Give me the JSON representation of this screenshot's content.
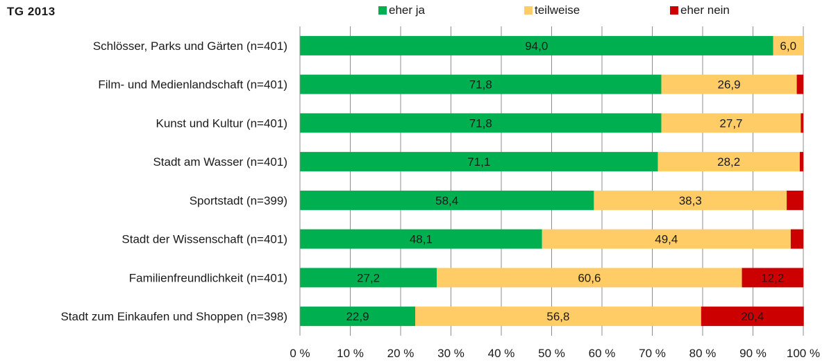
{
  "chart_data": {
    "type": "bar",
    "orientation": "horizontal",
    "stacked": true,
    "title": "TG 2013",
    "categories": [
      "Schlösser, Parks und Gärten (n=401)",
      "Film- und Medienlandschaft (n=401)",
      "Kunst und Kultur (n=401)",
      "Stadt am Wasser (n=401)",
      "Sportstadt (n=399)",
      "Stadt der Wissenschaft (n=401)",
      "Familienfreundlichkeit (n=401)",
      "Stadt zum Einkaufen und Shoppen (n=398)"
    ],
    "series": [
      {
        "name": "eher ja",
        "color": "#00b050",
        "values": [
          94.0,
          71.8,
          71.8,
          71.1,
          58.4,
          48.1,
          27.2,
          22.9
        ],
        "labels": [
          "94,0",
          "71,8",
          "71,8",
          "71,1",
          "58,4",
          "48,1",
          "27,2",
          "22,9"
        ]
      },
      {
        "name": "teilweise",
        "color": "#ffcc66",
        "values": [
          6.0,
          26.9,
          27.7,
          28.2,
          38.3,
          49.4,
          60.6,
          56.8
        ],
        "labels": [
          "6,0",
          "26,9",
          "27,7",
          "28,2",
          "38,3",
          "49,4",
          "60,6",
          "56,8"
        ]
      },
      {
        "name": "eher nein",
        "color": "#cc0000",
        "values": [
          0.0,
          1.3,
          0.5,
          0.7,
          3.3,
          2.5,
          12.2,
          20.4
        ],
        "labels": [
          "",
          "",
          "",
          "",
          "",
          "",
          "12,2",
          "20,4"
        ]
      }
    ],
    "xlim": [
      0,
      100
    ],
    "xticks": [
      "0 %",
      "10 %",
      "20 %",
      "30 %",
      "40 %",
      "50 %",
      "60 %",
      "70 %",
      "80 %",
      "90 %",
      "100 %"
    ],
    "grid": true,
    "legend": "top"
  }
}
